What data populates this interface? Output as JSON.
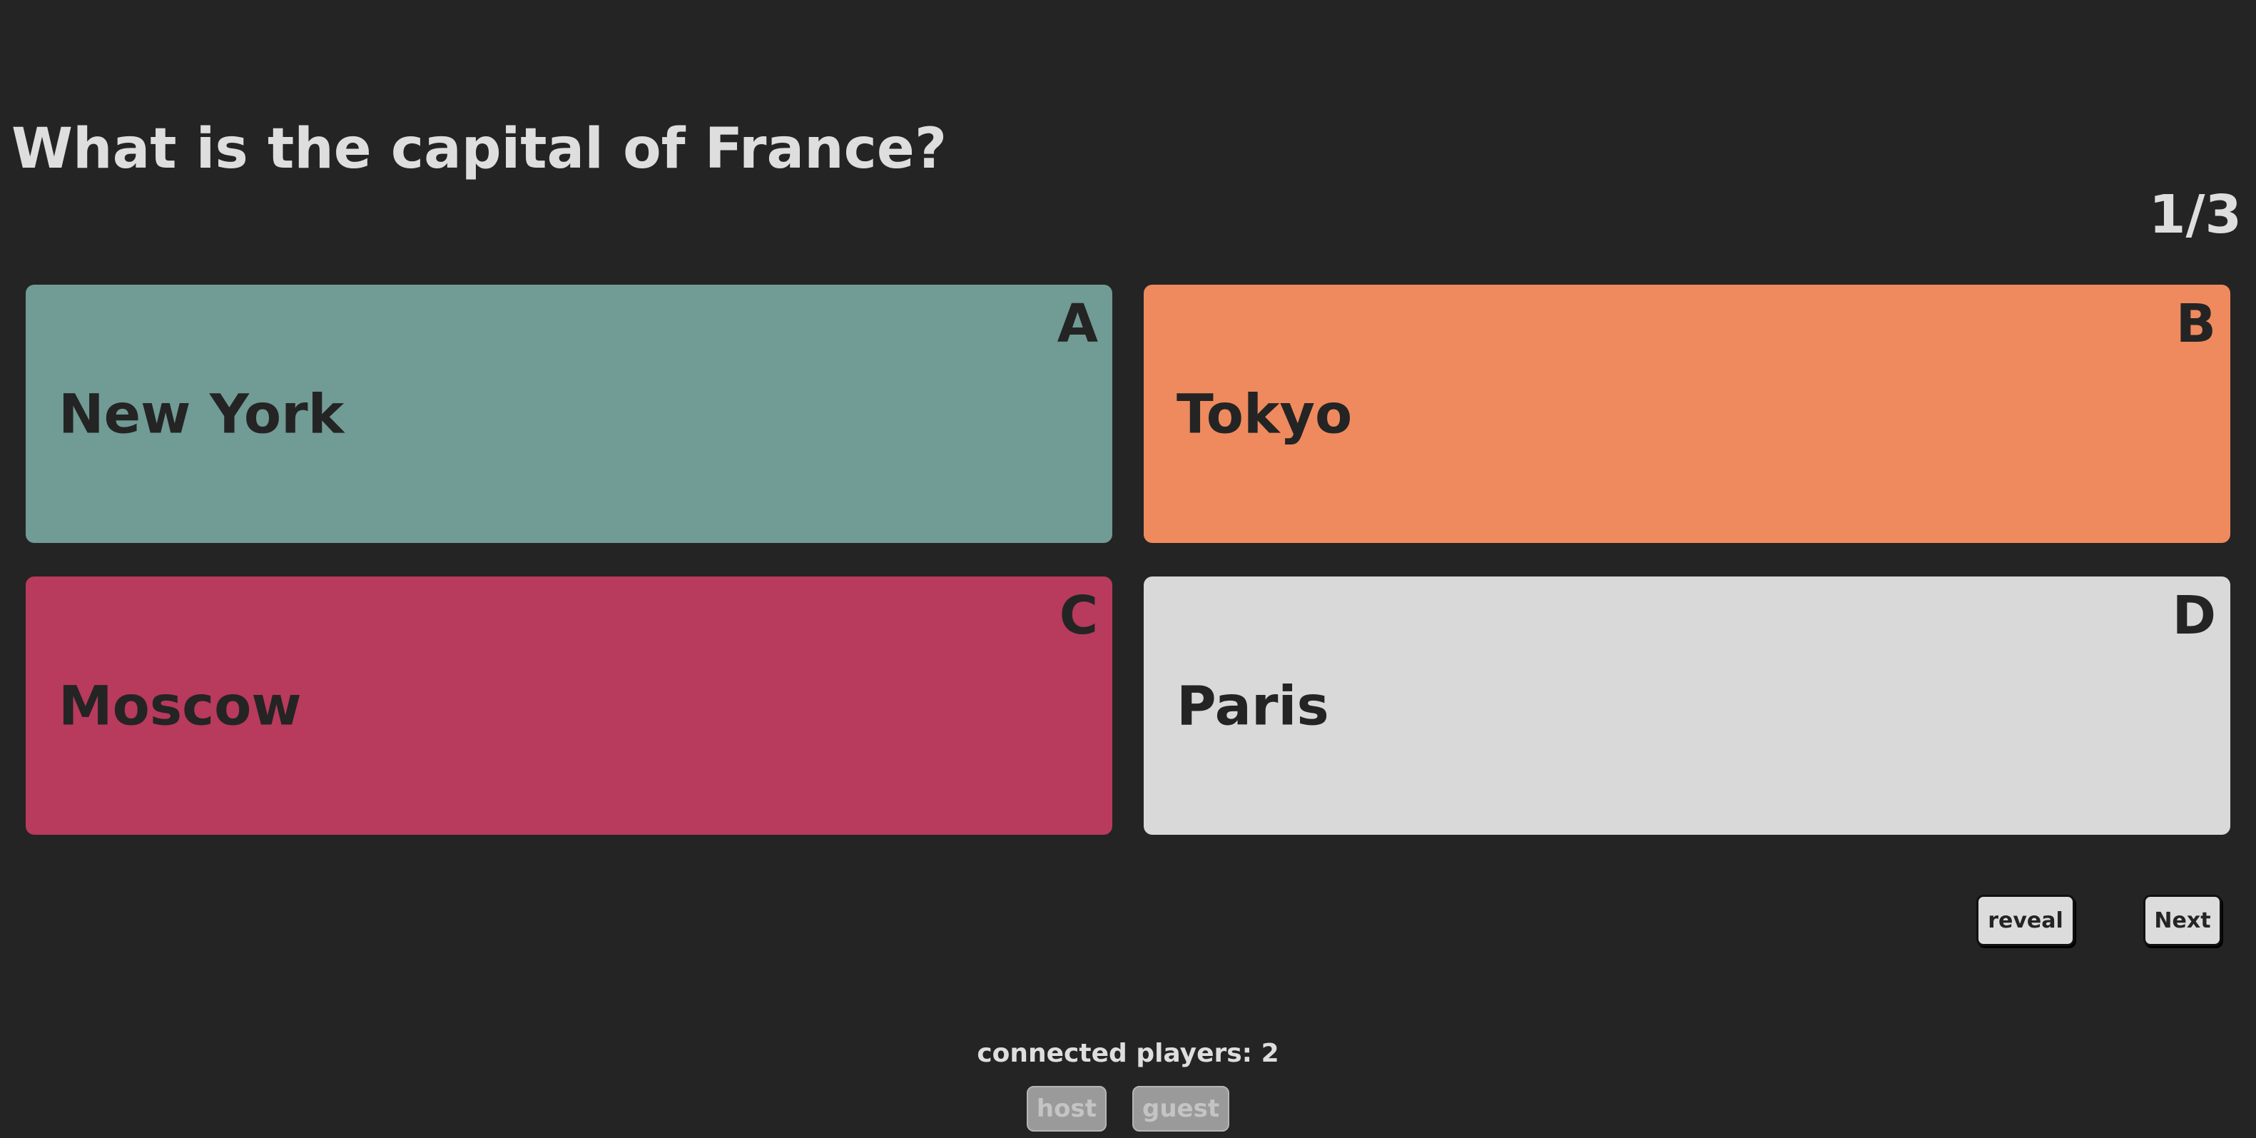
{
  "quiz": {
    "question": "What is the capital of France?",
    "progress": "1/3"
  },
  "answers": [
    {
      "letter": "A",
      "text": "New York",
      "color": "#719b95"
    },
    {
      "letter": "B",
      "text": "Tokyo",
      "color": "#ef8a5e"
    },
    {
      "letter": "C",
      "text": "Moscow",
      "color": "#b83a5c"
    },
    {
      "letter": "D",
      "text": "Paris",
      "color": "#d9d9d9"
    }
  ],
  "controls": {
    "reveal_label": "reveal",
    "next_label": "Next"
  },
  "players": {
    "label": "connected players: 2",
    "names": [
      "host",
      "guest"
    ]
  },
  "colors": {
    "background": "#242424",
    "text": "#dedede"
  }
}
